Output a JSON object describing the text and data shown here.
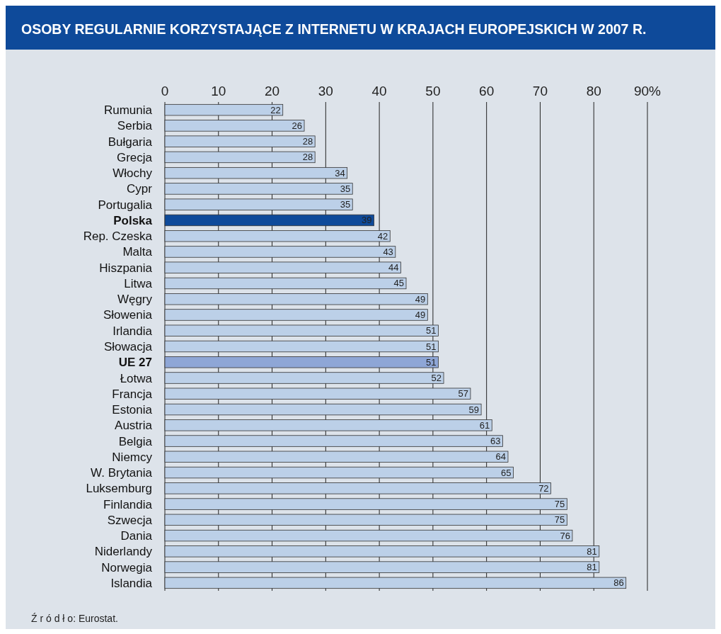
{
  "chart_data": {
    "type": "bar",
    "orientation": "horizontal",
    "title": "OSOBY REGULARNIE KORZYSTAJĄCE Z INTERNETU W KRAJACH EUROPEJSKICH W 2007 R.",
    "categories": [
      "Rumunia",
      "Serbia",
      "Bułgaria",
      "Grecja",
      "Włochy",
      "Cypr",
      "Portugalia",
      "Polska",
      "Rep. Czeska",
      "Malta",
      "Hiszpania",
      "Litwa",
      "Węgry",
      "Słowenia",
      "Irlandia",
      "Słowacja",
      "UE 27",
      "Łotwa",
      "Francja",
      "Estonia",
      "Austria",
      "Belgia",
      "Niemcy",
      "W. Brytania",
      "Luksemburg",
      "Finlandia",
      "Szwecja",
      "Dania",
      "Niderlandy",
      "Norwegia",
      "Islandia"
    ],
    "values": [
      22,
      26,
      28,
      28,
      34,
      35,
      35,
      39,
      42,
      43,
      44,
      45,
      49,
      49,
      51,
      51,
      51,
      52,
      57,
      59,
      61,
      63,
      64,
      65,
      72,
      75,
      75,
      76,
      81,
      81,
      86
    ],
    "colors": [
      "#bcd0e8",
      "#bcd0e8",
      "#bcd0e8",
      "#bcd0e8",
      "#bcd0e8",
      "#bcd0e8",
      "#bcd0e8",
      "#0e4a9a",
      "#bcd0e8",
      "#bcd0e8",
      "#bcd0e8",
      "#bcd0e8",
      "#bcd0e8",
      "#bcd0e8",
      "#bcd0e8",
      "#bcd0e8",
      "#8ea6d6",
      "#bcd0e8",
      "#bcd0e8",
      "#bcd0e8",
      "#bcd0e8",
      "#bcd0e8",
      "#bcd0e8",
      "#bcd0e8",
      "#bcd0e8",
      "#bcd0e8",
      "#bcd0e8",
      "#bcd0e8",
      "#bcd0e8",
      "#bcd0e8",
      "#bcd0e8"
    ],
    "xlim": [
      0,
      90
    ],
    "xticks": [
      0,
      10,
      20,
      30,
      40,
      50,
      60,
      70,
      80,
      {
        "value": 90,
        "label": "90%"
      }
    ],
    "grid": "x",
    "data_labels": true,
    "annotations": [
      "Ź r ó d ł o: Eurostat."
    ]
  }
}
